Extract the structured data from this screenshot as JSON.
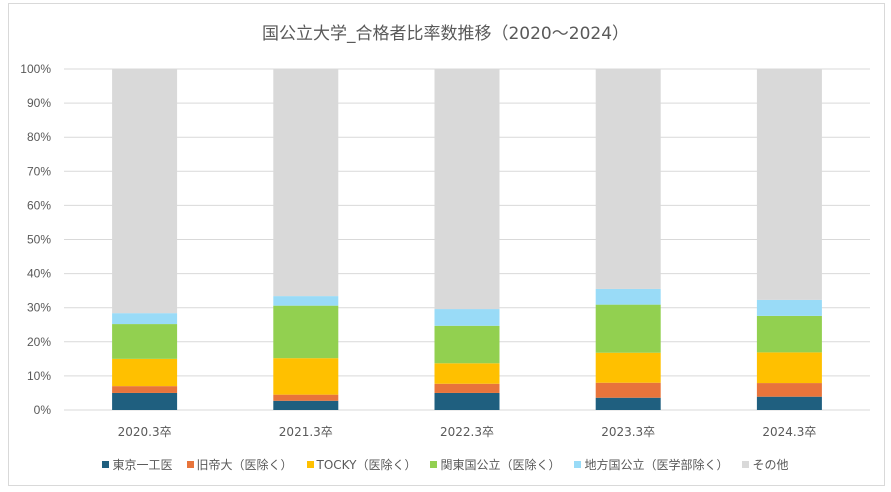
{
  "chart_data": {
    "type": "bar",
    "stacked": true,
    "title": "国公立大学_合格者比率数推移（2020～2024）",
    "xlabel": "",
    "ylabel": "",
    "ylim": [
      0,
      100
    ],
    "yticks": [
      "0%",
      "10%",
      "20%",
      "30%",
      "40%",
      "50%",
      "60%",
      "70%",
      "80%",
      "90%",
      "100%"
    ],
    "grid": true,
    "legend_position": "bottom",
    "categories": [
      "2020.3卒",
      "2021.3卒",
      "2022.3卒",
      "2023.3卒",
      "2024.3卒"
    ],
    "series": [
      {
        "name": "東京一工医",
        "color": "#1f5f7f",
        "values": [
          5.0,
          2.7,
          5.0,
          3.6,
          3.9
        ]
      },
      {
        "name": "旧帝大（医除く）",
        "color": "#e8743b",
        "values": [
          2.0,
          1.8,
          2.7,
          4.4,
          4.0
        ]
      },
      {
        "name": "TOCKY（医除く）",
        "color": "#ffc000",
        "values": [
          8.0,
          10.7,
          6.0,
          8.8,
          9.0
        ]
      },
      {
        "name": "関東国公立（医除く）",
        "color": "#92d050",
        "values": [
          10.2,
          15.4,
          11.0,
          14.1,
          10.7
        ]
      },
      {
        "name": "地方国公立（医学部除く）",
        "color": "#99dbf7",
        "values": [
          3.2,
          2.8,
          4.9,
          4.6,
          4.7
        ]
      },
      {
        "name": "その他",
        "color": "#d9d9d9",
        "values": [
          71.6,
          66.6,
          70.4,
          64.5,
          67.7
        ]
      }
    ]
  }
}
